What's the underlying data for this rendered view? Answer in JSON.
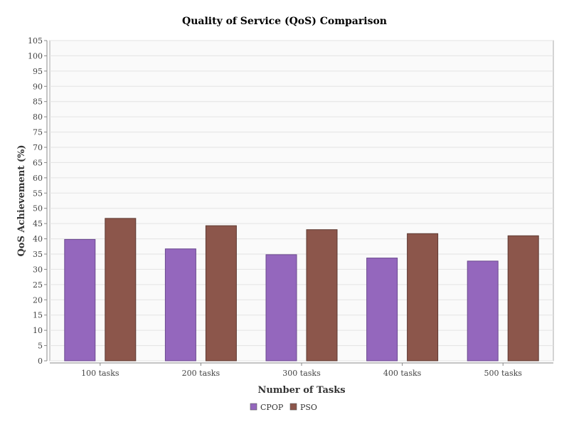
{
  "chart_data": {
    "type": "bar",
    "title": "Quality of Service (QoS) Comparison",
    "xlabel": "Number of Tasks",
    "ylabel": "QoS Achievement (%)",
    "categories": [
      "100 tasks",
      "200 tasks",
      "300 tasks",
      "400 tasks",
      "500 tasks"
    ],
    "series": [
      {
        "name": "CPOP",
        "color": "#9467bd",
        "values": [
          39.8,
          36.7,
          34.8,
          33.7,
          32.7
        ]
      },
      {
        "name": "PSO",
        "color": "#8c564b",
        "values": [
          46.7,
          44.3,
          43.0,
          41.7,
          41.0
        ]
      }
    ],
    "ylim": [
      0,
      105
    ],
    "yticks": [
      0,
      5,
      10,
      15,
      20,
      25,
      30,
      35,
      40,
      45,
      50,
      55,
      60,
      65,
      70,
      75,
      80,
      85,
      90,
      95,
      100,
      105
    ],
    "grid": true,
    "legend_position": "bottom-center"
  }
}
